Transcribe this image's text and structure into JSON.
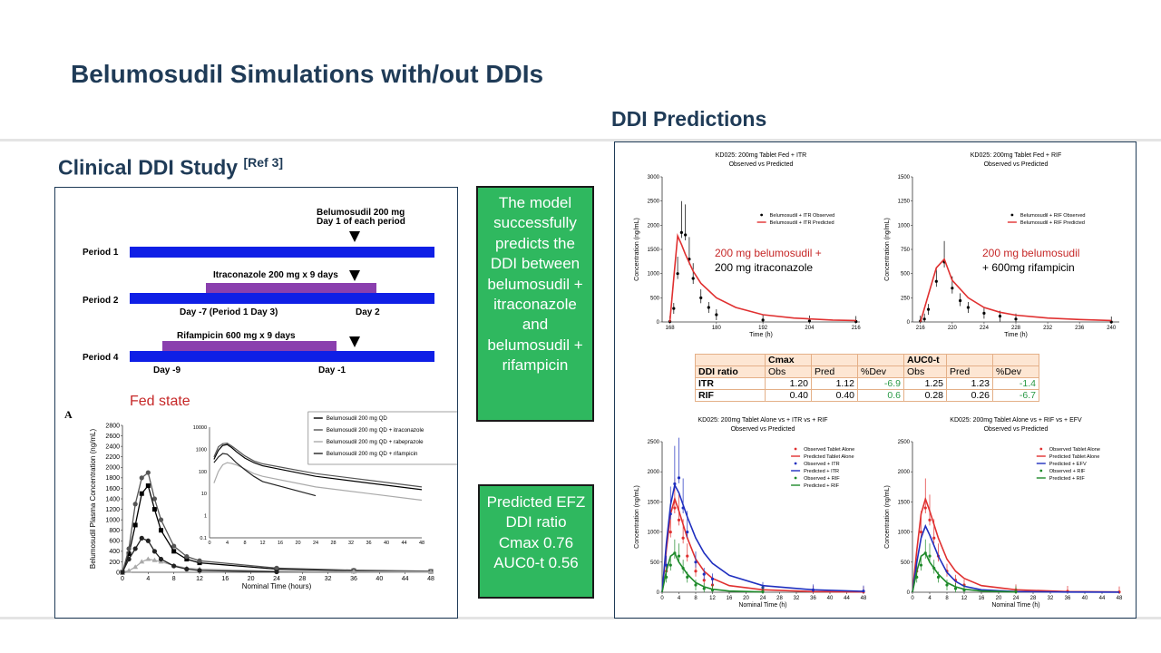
{
  "title": "Belumosudil Simulations with/out DDIs",
  "left_heading": "Clinical DDI Study",
  "left_heading_ref": "[Ref 3]",
  "right_heading": "DDI Predictions",
  "schematic": {
    "dose_label_1": "Belumosudil 200 mg",
    "dose_label_2": "Day 1 of each period",
    "periods": [
      "Period 1",
      "Period 2",
      "Period 4"
    ],
    "itr_label": "Itraconazole 200 mg x 9 days",
    "rif_label": "Rifampicin 600 mg x 9 days",
    "p2_day_left": "Day -7 (Period 1 Day 3)",
    "p2_day_right": "Day 2",
    "p4_day_left": "Day -9",
    "p4_day_right": "Day -1",
    "colors": {
      "period_bar": "#0f1fe6",
      "drug_bar": "#8a3fae"
    }
  },
  "fed_state_label": "Fed state",
  "panel_letter": "A",
  "green_box_1": "The model successfully predicts the DDI between belumosudil + itraconazole and belumosudil + rifampicin",
  "green_box_2": "Predicted EFZ DDI ratio Cmax 0.76 AUC0-t 0.56",
  "annotations": {
    "itr": [
      "200 mg belumosudil  +",
      "200 mg itraconazole"
    ],
    "rif": [
      "200 mg belumosudil",
      "+ 600mg rifampicin"
    ]
  },
  "ddi_table": {
    "group_headers": [
      "Cmax",
      "AUC0-t"
    ],
    "columns": [
      "DDI ratio",
      "Obs",
      "Pred",
      "%Dev",
      "Obs",
      "Pred",
      "%Dev"
    ],
    "rows": [
      [
        "ITR",
        "1.20",
        "1.12",
        "-6.9",
        "1.25",
        "1.23",
        "-1.4"
      ],
      [
        "RIF",
        "0.40",
        "0.40",
        "0.6",
        "0.28",
        "0.26",
        "-6.7"
      ]
    ]
  },
  "chart_data": [
    {
      "type": "line",
      "panel": "clinical",
      "xlabel": "Nominal Time (hours)",
      "ylabel": "Belumosudil Plasma Concentration (ng/mL)",
      "xlim": [
        0,
        48
      ],
      "ylim": [
        0,
        2800
      ],
      "x_ticks": [
        0,
        4,
        8,
        12,
        16,
        20,
        24,
        28,
        32,
        36,
        40,
        44,
        48
      ],
      "y_ticks": [
        0,
        200,
        400,
        600,
        800,
        1000,
        1200,
        1400,
        1600,
        1800,
        2000,
        2200,
        2400,
        2600,
        2800
      ],
      "legend_placement": "top-right",
      "series": [
        {
          "name": "Belumosudil 200 mg QD",
          "color": "#000000",
          "x": [
            0,
            1,
            2,
            3,
            4,
            5,
            6,
            8,
            10,
            12,
            24,
            36,
            48
          ],
          "values": [
            0,
            350,
            900,
            1500,
            1650,
            1200,
            800,
            400,
            250,
            180,
            60,
            30,
            15
          ]
        },
        {
          "name": "Belumosudil 200 mg QD + itraconazole",
          "color": "#555555",
          "x": [
            0,
            1,
            2,
            3,
            4,
            5,
            6,
            8,
            10,
            12,
            24,
            36,
            48
          ],
          "values": [
            0,
            450,
            1300,
            1800,
            1900,
            1400,
            1000,
            500,
            300,
            220,
            80,
            40,
            20
          ]
        },
        {
          "name": "Belumosudil 200 mg QD + rabeprazole",
          "color": "#aaaaaa",
          "x": [
            0,
            1,
            2,
            3,
            4,
            5,
            6,
            8,
            10,
            12,
            24,
            36,
            48
          ],
          "values": [
            0,
            30,
            100,
            200,
            250,
            230,
            200,
            130,
            80,
            60,
            20,
            10,
            5
          ]
        },
        {
          "name": "Belumosudil 200 mg QD + rifampicin",
          "color": "#222222",
          "x": [
            0,
            1,
            2,
            3,
            4,
            5,
            6,
            8,
            10,
            12,
            24
          ],
          "values": [
            0,
            250,
            450,
            650,
            600,
            400,
            250,
            120,
            60,
            35,
            8
          ]
        }
      ],
      "inset": {
        "scale": "log",
        "x_ticks": [
          0,
          4,
          8,
          12,
          16,
          20,
          24,
          28,
          32,
          36,
          40,
          44,
          48
        ],
        "y_ticks": [
          "0.1",
          "1",
          "10",
          "100",
          "1000",
          "10000"
        ]
      }
    },
    {
      "type": "line",
      "panel": "itr",
      "title": "KD025: 200mg Tablet Fed + ITR",
      "subtitle": "Observed vs Predicted",
      "xlabel": "Time (h)",
      "ylabel": "Concentration (ng/mL)",
      "xlim": [
        166,
        217
      ],
      "ylim": [
        0,
        3000
      ],
      "x_ticks": [
        168,
        180,
        192,
        204,
        216
      ],
      "y_ticks": [
        0,
        500,
        1000,
        1500,
        2000,
        2500,
        3000
      ],
      "series": [
        {
          "name": "Belumosudil + ITR Observed",
          "x": [
            168,
            169,
            170,
            171,
            172,
            173,
            174,
            176,
            178,
            180,
            192,
            204,
            216
          ],
          "values": [
            10,
            280,
            1000,
            1850,
            1800,
            1300,
            900,
            500,
            300,
            150,
            40,
            20,
            10
          ]
        },
        {
          "name": "Belumosudil + ITR Predicted",
          "color": "#e03030",
          "x": [
            168,
            169,
            170,
            171,
            172,
            174,
            176,
            180,
            185,
            192,
            200,
            210,
            216
          ],
          "values": [
            0,
            900,
            1780,
            1600,
            1400,
            1050,
            800,
            500,
            300,
            150,
            80,
            40,
            30
          ]
        }
      ]
    },
    {
      "type": "line",
      "panel": "rif",
      "title": "KD025: 200mg Tablet Fed + RIF",
      "subtitle": "Observed vs Predicted",
      "xlabel": "Time (h)",
      "ylabel": "Concentration (ng/mL)",
      "xlim": [
        215,
        241
      ],
      "ylim": [
        0,
        1500
      ],
      "x_ticks": [
        216,
        220,
        224,
        228,
        232,
        236,
        240
      ],
      "y_ticks": [
        0,
        250,
        500,
        750,
        1000,
        1250,
        1500
      ],
      "series": [
        {
          "name": "Belumosudil + RIF Observed",
          "x": [
            216,
            216.5,
            217,
            218,
            219,
            220,
            221,
            222,
            224,
            226,
            228,
            240
          ],
          "values": [
            10,
            30,
            130,
            420,
            620,
            350,
            220,
            150,
            90,
            60,
            30,
            -20
          ]
        },
        {
          "name": "Belumosudil + RIF Predicted",
          "color": "#e03030",
          "x": [
            216,
            217,
            218,
            219,
            220,
            222,
            224,
            226,
            228,
            232,
            236,
            240
          ],
          "values": [
            0,
            280,
            560,
            650,
            430,
            250,
            150,
            100,
            70,
            40,
            25,
            15
          ]
        }
      ]
    },
    {
      "type": "line",
      "panel": "itr_rif",
      "title": "KD025: 200mg Tablet Alone vs + ITR vs + RIF",
      "subtitle": "Observed vs Predicted",
      "xlabel": "Nominal Time (h)",
      "ylabel": "Concentration (ng/mL)",
      "xlim": [
        0,
        48
      ],
      "ylim": [
        0,
        2500
      ],
      "x_ticks": [
        0,
        4,
        8,
        12,
        16,
        20,
        24,
        28,
        32,
        36,
        40,
        44,
        48
      ],
      "y_ticks": [
        0,
        500,
        1000,
        1500,
        2000,
        2500
      ],
      "series": [
        {
          "name": "Observed Tablet Alone",
          "color": "#e03030",
          "x": [
            1,
            2,
            3,
            4,
            5,
            6,
            8,
            10,
            12,
            24,
            36,
            48
          ],
          "values": [
            350,
            1000,
            1400,
            1200,
            900,
            600,
            350,
            200,
            120,
            40,
            15,
            5
          ]
        },
        {
          "name": "Predicted Tablet Alone",
          "color": "#e03030",
          "x": [
            0,
            1,
            2,
            3,
            4,
            6,
            8,
            10,
            12,
            16,
            24,
            36,
            48
          ],
          "values": [
            0,
            700,
            1300,
            1550,
            1350,
            900,
            550,
            350,
            230,
            110,
            40,
            10,
            4
          ]
        },
        {
          "name": "Observed + ITR",
          "color": "#1f2fbf",
          "x": [
            1,
            2,
            3,
            4,
            5,
            6,
            8,
            10,
            12,
            24,
            36,
            48
          ],
          "values": [
            450,
            1300,
            1800,
            1900,
            1400,
            1000,
            500,
            300,
            220,
            80,
            40,
            20
          ]
        },
        {
          "name": "Predicted + ITR",
          "color": "#1f2fbf",
          "x": [
            0,
            1,
            2,
            3,
            4,
            6,
            8,
            10,
            12,
            16,
            24,
            36,
            48
          ],
          "values": [
            0,
            800,
            1450,
            1780,
            1650,
            1250,
            900,
            650,
            480,
            280,
            110,
            40,
            15
          ]
        },
        {
          "name": "Observed + RIF",
          "color": "#1e8a2a",
          "x": [
            1,
            2,
            3,
            4,
            5,
            6,
            8,
            10,
            12,
            24
          ],
          "values": [
            250,
            450,
            650,
            600,
            400,
            250,
            120,
            60,
            35,
            8
          ]
        },
        {
          "name": "Predicted + RIF",
          "color": "#1e8a2a",
          "x": [
            0,
            1,
            2,
            3,
            4,
            6,
            8,
            10,
            12,
            16,
            24
          ],
          "values": [
            0,
            350,
            600,
            650,
            500,
            300,
            160,
            90,
            50,
            20,
            5
          ]
        }
      ]
    },
    {
      "type": "line",
      "panel": "efv_rif",
      "title": "KD025: 200mg Tablet Alone vs + RIF vs + EFV",
      "subtitle": "Observed vs Predicted",
      "xlabel": "Nominal Time (h)",
      "ylabel": "Concentration (ng/mL)",
      "xlim": [
        0,
        48
      ],
      "ylim": [
        0,
        2500
      ],
      "x_ticks": [
        0,
        4,
        8,
        12,
        16,
        20,
        24,
        28,
        32,
        36,
        40,
        44,
        48
      ],
      "y_ticks": [
        0,
        500,
        1000,
        1500,
        2000,
        2500
      ],
      "series": [
        {
          "name": "Observed Tablet Alone",
          "color": "#e03030",
          "x": [
            1,
            2,
            3,
            4,
            5,
            6,
            8,
            10,
            12,
            24,
            36,
            48
          ],
          "values": [
            350,
            1000,
            1400,
            1200,
            900,
            600,
            350,
            200,
            120,
            40,
            15,
            5
          ]
        },
        {
          "name": "Predicted Tablet Alone",
          "color": "#e03030",
          "x": [
            0,
            1,
            2,
            3,
            4,
            6,
            8,
            10,
            12,
            16,
            24,
            36,
            48
          ],
          "values": [
            0,
            700,
            1300,
            1550,
            1350,
            900,
            550,
            350,
            230,
            110,
            40,
            10,
            4
          ]
        },
        {
          "name": "Predicted + EFV",
          "color": "#1f2fbf",
          "x": [
            0,
            1,
            2,
            3,
            4,
            6,
            8,
            10,
            12,
            16,
            24,
            36,
            48
          ],
          "values": [
            0,
            500,
            900,
            1100,
            950,
            600,
            330,
            180,
            100,
            40,
            10,
            3,
            1
          ]
        },
        {
          "name": "Observed + RIF",
          "color": "#1e8a2a",
          "x": [
            1,
            2,
            3,
            4,
            5,
            6,
            8,
            10,
            12,
            24
          ],
          "values": [
            250,
            450,
            650,
            600,
            400,
            250,
            120,
            60,
            35,
            8
          ]
        },
        {
          "name": "Predicted + RIF",
          "color": "#1e8a2a",
          "x": [
            0,
            1,
            2,
            3,
            4,
            6,
            8,
            10,
            12,
            16,
            24
          ],
          "values": [
            0,
            350,
            600,
            650,
            500,
            300,
            160,
            90,
            50,
            20,
            5
          ]
        }
      ]
    }
  ]
}
